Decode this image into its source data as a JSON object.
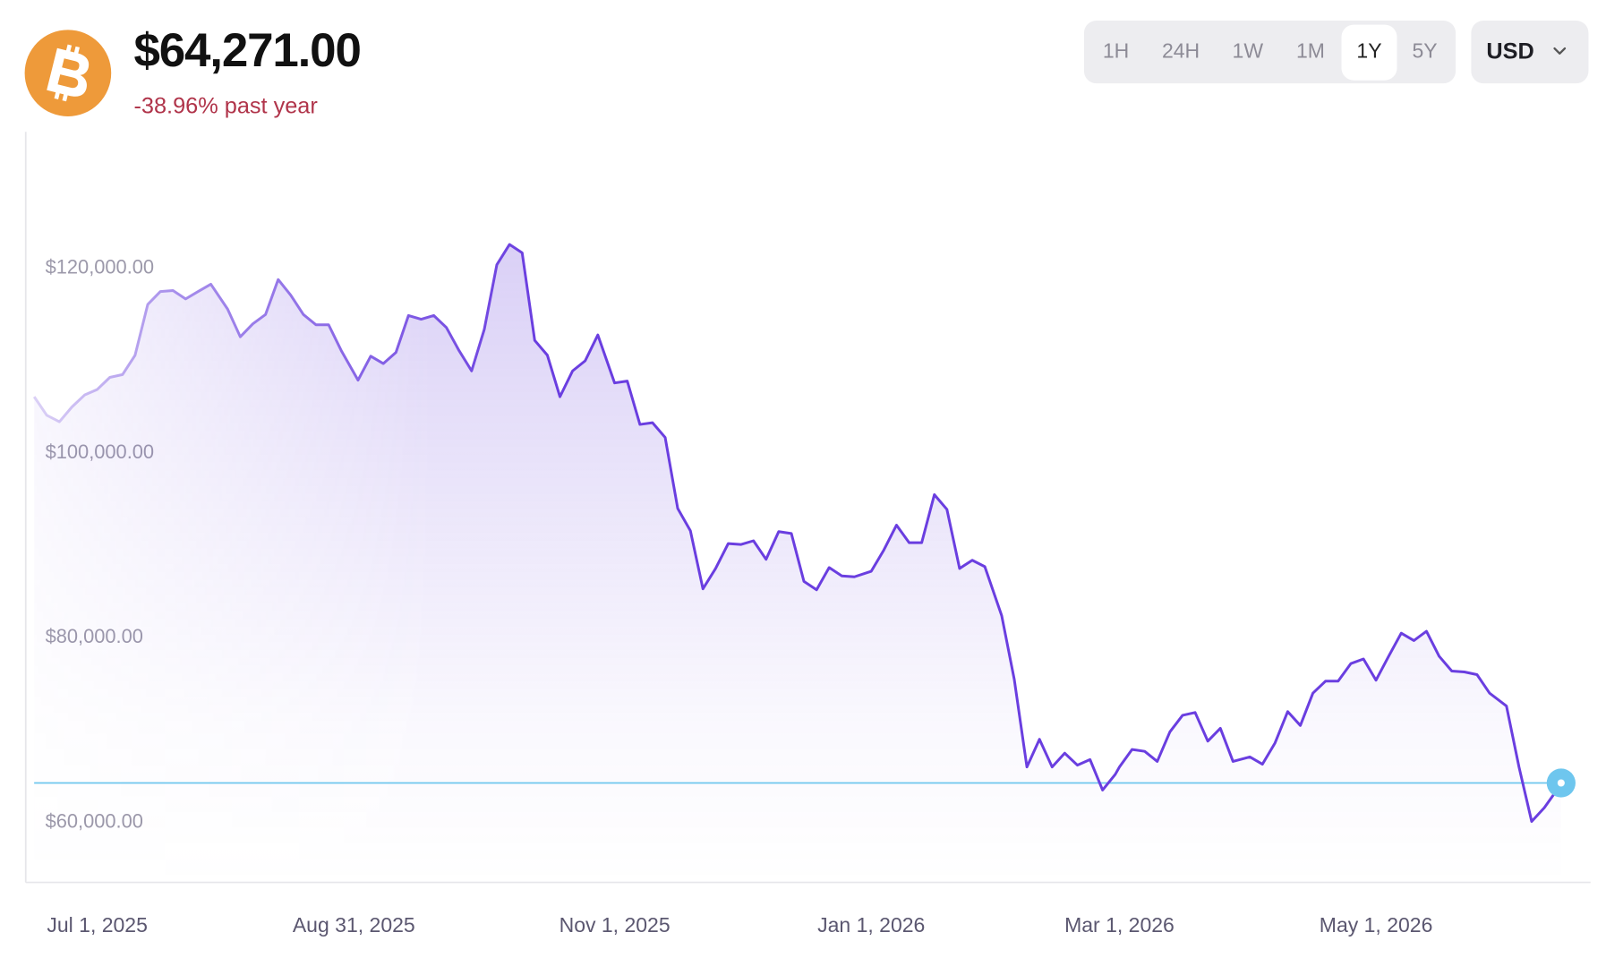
{
  "header": {
    "price": "$64,271.00",
    "change": "-38.96% past year",
    "change_color": "#b0344a"
  },
  "controls": {
    "ranges": [
      "1H",
      "24H",
      "1W",
      "1M",
      "1Y",
      "5Y"
    ],
    "active_range": 4,
    "currency": "USD"
  },
  "chart_data": {
    "type": "line",
    "x": [
      "2025-06-16",
      "2025-06-19",
      "2025-06-22",
      "2025-06-25",
      "2025-06-28",
      "2025-07-01",
      "2025-07-04",
      "2025-07-07",
      "2025-07-10",
      "2025-07-13",
      "2025-07-16",
      "2025-07-19",
      "2025-07-22",
      "2025-07-25",
      "2025-07-28",
      "2025-08-01",
      "2025-08-04",
      "2025-08-07",
      "2025-08-10",
      "2025-08-13",
      "2025-08-16",
      "2025-08-19",
      "2025-08-22",
      "2025-08-25",
      "2025-08-28",
      "2025-09-01",
      "2025-09-04",
      "2025-09-07",
      "2025-09-10",
      "2025-09-13",
      "2025-09-16",
      "2025-09-19",
      "2025-09-22",
      "2025-09-25",
      "2025-09-28",
      "2025-10-01",
      "2025-10-04",
      "2025-10-07",
      "2025-10-10",
      "2025-10-13",
      "2025-10-16",
      "2025-10-19",
      "2025-10-22",
      "2025-10-25",
      "2025-10-28",
      "2025-11-01",
      "2025-11-04",
      "2025-11-07",
      "2025-11-10",
      "2025-11-13",
      "2025-11-16",
      "2025-11-19",
      "2025-11-22",
      "2025-11-25",
      "2025-11-28",
      "2025-12-01",
      "2025-12-04",
      "2025-12-07",
      "2025-12-10",
      "2025-12-13",
      "2025-12-16",
      "2025-12-19",
      "2025-12-22",
      "2025-12-25",
      "2025-12-28",
      "2026-01-01",
      "2026-01-04",
      "2026-01-07",
      "2026-01-10",
      "2026-01-13",
      "2026-01-16",
      "2026-01-19",
      "2026-01-22",
      "2026-01-25",
      "2026-01-28",
      "2026-02-01",
      "2026-02-04",
      "2026-02-07",
      "2026-02-10",
      "2026-02-13",
      "2026-02-16",
      "2026-02-19",
      "2026-02-22",
      "2026-02-25",
      "2026-02-28",
      "2026-03-01",
      "2026-03-04",
      "2026-03-07",
      "2026-03-10",
      "2026-03-13",
      "2026-03-16",
      "2026-03-19",
      "2026-03-22",
      "2026-03-25",
      "2026-03-28",
      "2026-04-01",
      "2026-04-04",
      "2026-04-07",
      "2026-04-10",
      "2026-04-13",
      "2026-04-16",
      "2026-04-19",
      "2026-04-22",
      "2026-04-25",
      "2026-04-28",
      "2026-05-01",
      "2026-05-04",
      "2026-05-07",
      "2026-05-10",
      "2026-05-13",
      "2026-05-16",
      "2026-05-19",
      "2026-05-22",
      "2026-05-25",
      "2026-05-28",
      "2026-06-01",
      "2026-06-04",
      "2026-06-07",
      "2026-06-10",
      "2026-06-13",
      "2026-06-14"
    ],
    "values": [
      106100,
      104100,
      103400,
      105000,
      106300,
      106900,
      108200,
      108500,
      110600,
      116100,
      117500,
      117600,
      116700,
      117500,
      118300,
      115600,
      112600,
      114000,
      115000,
      118800,
      117100,
      115000,
      113900,
      113900,
      111100,
      107900,
      110500,
      109700,
      110900,
      114900,
      114500,
      114900,
      113600,
      111100,
      108900,
      113400,
      120400,
      122600,
      121700,
      112200,
      110600,
      106100,
      108900,
      110000,
      112800,
      107600,
      107800,
      103100,
      103300,
      101700,
      94000,
      91600,
      85300,
      87500,
      90200,
      90100,
      90500,
      88500,
      91500,
      91300,
      86100,
      85200,
      87600,
      86700,
      86600,
      87200,
      89500,
      92200,
      90300,
      90300,
      95500,
      93900,
      87500,
      88400,
      87700,
      82400,
      75500,
      66000,
      69000,
      66000,
      67500,
      66200,
      66800,
      63500,
      65200,
      66000,
      67900,
      67700,
      66600,
      69800,
      71600,
      71900,
      68800,
      70200,
      66600,
      67100,
      66300,
      68600,
      72000,
      70500,
      74000,
      75300,
      75300,
      77200,
      77700,
      75400,
      78000,
      80500,
      79700,
      80700,
      78000,
      76400,
      76300,
      76000,
      74000,
      72600,
      66000,
      60100,
      61600,
      63500,
      64271
    ],
    "color": "#6a3ee0",
    "price_line_color": "#6ec6ee",
    "xlim": [
      "2025-06-14",
      "2026-06-21"
    ],
    "xticks": [
      {
        "value": "2025-07-01",
        "label": "Jul 1, 2025"
      },
      {
        "value": "2025-08-31",
        "label": "Aug 31, 2025"
      },
      {
        "value": "2025-11-01",
        "label": "Nov 1, 2025"
      },
      {
        "value": "2026-01-01",
        "label": "Jan 1, 2026"
      },
      {
        "value": "2026-03-01",
        "label": "Mar 1, 2026"
      },
      {
        "value": "2026-05-01",
        "label": "May 1, 2026"
      }
    ],
    "ylim": [
      53500,
      134800
    ],
    "yticks": [
      {
        "value": 60000,
        "label": "$60,000.00"
      },
      {
        "value": 80000,
        "label": "$80,000.00"
      },
      {
        "value": 100000,
        "label": "$100,000.00"
      },
      {
        "value": 120000,
        "label": "$120,000.00"
      }
    ],
    "grid": false
  }
}
